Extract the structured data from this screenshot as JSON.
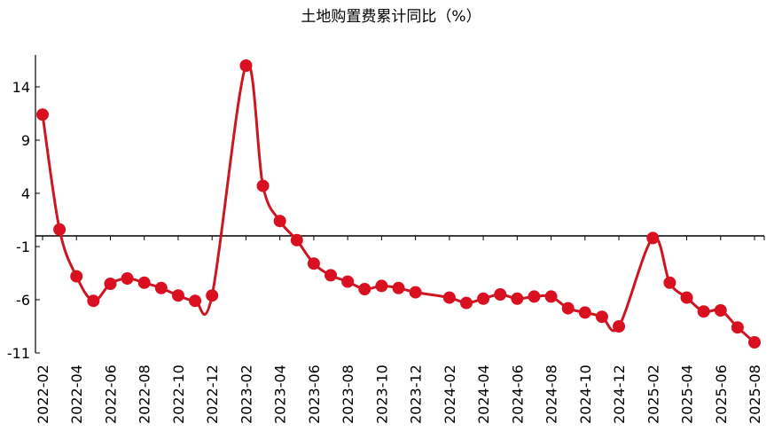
{
  "chart_data": {
    "type": "line",
    "title": "土地购置费累计同比（%）",
    "xlabel": "",
    "ylabel": "",
    "ylim": [
      -11,
      17
    ],
    "yticks": [
      14,
      9,
      4,
      -1,
      -6,
      -11
    ],
    "xtick_labels": [
      "2022-02",
      "2022-04",
      "2022-06",
      "2022-08",
      "2022-10",
      "2022-12",
      "2023-02",
      "2023-04",
      "2023-06",
      "2023-08",
      "2023-10",
      "2023-12",
      "2024-02",
      "2024-04",
      "2024-06",
      "2024-08",
      "2024-10",
      "2024-12",
      "2025-02",
      "2025-04",
      "2025-06",
      "2025-08"
    ],
    "x": [
      "2022-02",
      "2022-03",
      "2022-04",
      "2022-05",
      "2022-06",
      "2022-07",
      "2022-08",
      "2022-09",
      "2022-10",
      "2022-11",
      "2022-12",
      "2023-02",
      "2023-03",
      "2023-04",
      "2023-05",
      "2023-06",
      "2023-07",
      "2023-08",
      "2023-09",
      "2023-10",
      "2023-11",
      "2023-12",
      "2024-02",
      "2024-03",
      "2024-04",
      "2024-05",
      "2024-06",
      "2024-07",
      "2024-08",
      "2024-09",
      "2024-10",
      "2024-11",
      "2024-12",
      "2025-02",
      "2025-03",
      "2025-04",
      "2025-05",
      "2025-06",
      "2025-07",
      "2025-08"
    ],
    "series": [
      {
        "values": [
          11.4,
          0.6,
          -3.8,
          -6.1,
          -4.5,
          -4.0,
          -4.4,
          -4.9,
          -5.6,
          -6.1,
          -5.6,
          16.0,
          4.7,
          1.4,
          -0.4,
          -2.6,
          -3.7,
          -4.3,
          -5.0,
          -4.7,
          -4.9,
          -5.3,
          -5.8,
          -6.3,
          -5.9,
          -5.5,
          -5.9,
          -5.7,
          -5.7,
          -6.8,
          -7.2,
          -7.6,
          -8.5,
          -0.2,
          -4.4,
          -5.8,
          -7.1,
          -7.0,
          -8.6,
          -10.0
        ]
      }
    ],
    "baseline": 0,
    "grid": false,
    "legend": "none",
    "line_color": "#cc1722",
    "marker_color": "#d8101f"
  }
}
